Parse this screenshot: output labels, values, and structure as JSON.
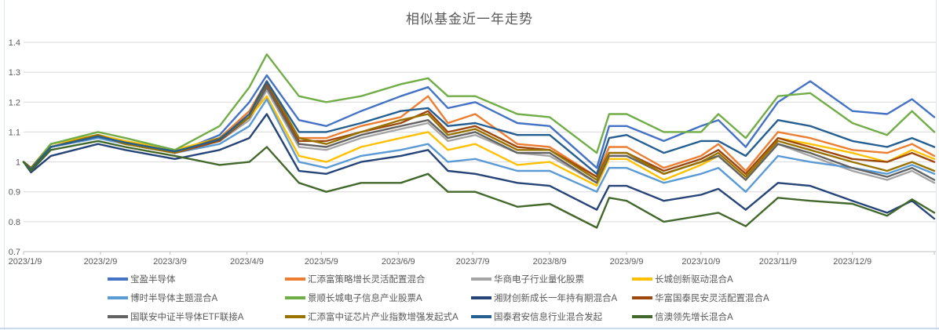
{
  "chart_data": {
    "type": "line",
    "title": "相似基金近一年走势",
    "xlabel": "",
    "ylabel": "",
    "ylim": [
      0.7,
      1.4
    ],
    "y_ticks": [
      0.7,
      0.8,
      0.9,
      1,
      1.1,
      1.2,
      1.3,
      1.4
    ],
    "y_tick_labels": [
      "0.7",
      "0.8",
      "0.9",
      "1",
      "1.1",
      "1.2",
      "1.3",
      "1.4"
    ],
    "x_tick_labels": [
      "2023/1/9",
      "2023/2/9",
      "2023/3/9",
      "2023/4/9",
      "2023/5/9",
      "2023/6/9",
      "2023/7/9",
      "2023/8/9",
      "2023/9/9",
      "2023/10/9",
      "2023/11/9",
      "2023/12/9"
    ],
    "x_tick_days": [
      0,
      31,
      59,
      90,
      120,
      151,
      181,
      212,
      243,
      273,
      304,
      334
    ],
    "xlim": [
      0,
      367
    ],
    "grid": true,
    "legend_position": "bottom",
    "x_days": [
      0,
      3,
      11,
      30,
      41,
      61,
      79,
      91,
      98,
      111,
      122,
      136,
      152,
      163,
      171,
      182,
      199,
      212,
      231,
      236,
      243,
      258,
      273,
      280,
      291,
      304,
      317,
      334,
      348,
      358,
      367
    ],
    "series": [
      {
        "name": "宝盈半导体",
        "color": "#4472C4",
        "values": [
          1.0,
          0.975,
          1.06,
          1.09,
          1.07,
          1.03,
          1.09,
          1.2,
          1.29,
          1.14,
          1.12,
          1.17,
          1.22,
          1.25,
          1.18,
          1.2,
          1.13,
          1.12,
          0.98,
          1.12,
          1.12,
          1.07,
          1.12,
          1.14,
          1.05,
          1.2,
          1.27,
          1.17,
          1.16,
          1.21,
          1.15
        ]
      },
      {
        "name": "汇添富策略增长灵活配置混合",
        "color": "#ED7D31",
        "values": [
          1.0,
          0.98,
          1.05,
          1.09,
          1.07,
          1.04,
          1.08,
          1.17,
          1.27,
          1.08,
          1.08,
          1.12,
          1.15,
          1.22,
          1.13,
          1.16,
          1.06,
          1.05,
          0.95,
          1.05,
          1.05,
          0.98,
          1.02,
          1.06,
          0.97,
          1.1,
          1.08,
          1.04,
          1.03,
          1.06,
          1.02
        ]
      },
      {
        "name": "华商电子行业量化股票",
        "color": "#A5A5A5",
        "values": [
          1.0,
          0.98,
          1.05,
          1.08,
          1.06,
          1.03,
          1.07,
          1.14,
          1.24,
          1.05,
          1.04,
          1.08,
          1.11,
          1.13,
          1.07,
          1.09,
          1.03,
          1.02,
          0.93,
          1.02,
          1.02,
          0.96,
          1.0,
          1.02,
          0.94,
          1.06,
          1.02,
          0.97,
          0.94,
          0.97,
          0.93
        ]
      },
      {
        "name": "长城创新驱动混合A",
        "color": "#FFC000",
        "values": [
          1.0,
          0.98,
          1.06,
          1.09,
          1.07,
          1.04,
          1.08,
          1.15,
          1.22,
          1.02,
          1.0,
          1.05,
          1.08,
          1.1,
          1.04,
          1.06,
          0.99,
          1.0,
          0.92,
          1.01,
          1.01,
          0.94,
          0.99,
          1.02,
          0.94,
          1.08,
          1.06,
          1.03,
          1.0,
          1.04,
          1.01
        ]
      },
      {
        "name": "博时半导体主题混合A",
        "color": "#5B9BD5",
        "values": [
          1.0,
          0.975,
          1.05,
          1.08,
          1.06,
          1.03,
          1.06,
          1.12,
          1.21,
          1.0,
          0.98,
          1.02,
          1.04,
          1.06,
          1.0,
          1.01,
          0.97,
          0.97,
          0.9,
          0.98,
          0.98,
          0.93,
          0.96,
          0.98,
          0.9,
          1.02,
          1.0,
          0.98,
          0.96,
          0.99,
          0.96
        ]
      },
      {
        "name": "景顺长城电子信息产业股票A",
        "color": "#70AD47",
        "values": [
          1.0,
          0.98,
          1.06,
          1.1,
          1.08,
          1.04,
          1.12,
          1.25,
          1.36,
          1.22,
          1.2,
          1.22,
          1.26,
          1.28,
          1.22,
          1.22,
          1.16,
          1.15,
          1.03,
          1.16,
          1.16,
          1.1,
          1.1,
          1.16,
          1.08,
          1.22,
          1.23,
          1.13,
          1.09,
          1.17,
          1.1
        ]
      },
      {
        "name": "湘财创新成长一年持有期混合A",
        "color": "#264478",
        "values": [
          1.0,
          0.965,
          1.02,
          1.06,
          1.04,
          1.01,
          1.04,
          1.08,
          1.16,
          0.97,
          0.96,
          1.0,
          1.02,
          1.04,
          0.97,
          0.96,
          0.93,
          0.92,
          0.84,
          0.92,
          0.92,
          0.87,
          0.89,
          0.91,
          0.84,
          0.93,
          0.92,
          0.87,
          0.83,
          0.87,
          0.81
        ]
      },
      {
        "name": "华富国泰民安灵活配置混合A",
        "color": "#9E480E",
        "values": [
          1.0,
          0.98,
          1.05,
          1.09,
          1.06,
          1.03,
          1.07,
          1.15,
          1.26,
          1.07,
          1.07,
          1.1,
          1.13,
          1.17,
          1.1,
          1.12,
          1.05,
          1.04,
          0.95,
          1.03,
          1.03,
          0.97,
          1.01,
          1.04,
          0.96,
          1.08,
          1.05,
          1.01,
          1.0,
          1.03,
          1.0
        ]
      },
      {
        "name": "国联安中证半导体ETF联接A",
        "color": "#636363",
        "values": [
          1.0,
          0.98,
          1.05,
          1.085,
          1.065,
          1.035,
          1.075,
          1.15,
          1.25,
          1.06,
          1.05,
          1.09,
          1.12,
          1.14,
          1.08,
          1.1,
          1.03,
          1.03,
          0.93,
          1.02,
          1.02,
          0.96,
          1.0,
          1.02,
          0.94,
          1.06,
          1.03,
          0.98,
          0.95,
          0.98,
          0.94
        ]
      },
      {
        "name": "汇添富中证芯片产业指数增强发起式A",
        "color": "#997300",
        "values": [
          1.0,
          0.98,
          1.05,
          1.09,
          1.06,
          1.03,
          1.08,
          1.15,
          1.27,
          1.08,
          1.06,
          1.1,
          1.14,
          1.16,
          1.09,
          1.11,
          1.04,
          1.04,
          0.94,
          1.03,
          1.03,
          0.96,
          1.0,
          1.03,
          0.95,
          1.07,
          1.04,
          1.0,
          0.97,
          1.0,
          0.97
        ]
      },
      {
        "name": "国泰君安信息行业混合发起",
        "color": "#255E91",
        "values": [
          1.0,
          0.975,
          1.05,
          1.085,
          1.065,
          1.035,
          1.075,
          1.16,
          1.27,
          1.1,
          1.1,
          1.13,
          1.17,
          1.18,
          1.12,
          1.13,
          1.09,
          1.09,
          0.96,
          1.08,
          1.09,
          1.03,
          1.07,
          1.07,
          1.02,
          1.14,
          1.12,
          1.07,
          1.05,
          1.08,
          1.05
        ]
      },
      {
        "name": "信澳领先增长混合A",
        "color": "#43682B",
        "values": [
          1.0,
          0.97,
          1.04,
          1.07,
          1.05,
          1.02,
          0.99,
          1.0,
          1.05,
          0.93,
          0.9,
          0.93,
          0.93,
          0.96,
          0.9,
          0.9,
          0.85,
          0.86,
          0.78,
          0.88,
          0.87,
          0.8,
          0.82,
          0.83,
          0.785,
          0.88,
          0.87,
          0.86,
          0.82,
          0.875,
          0.83
        ]
      }
    ],
    "colors": {
      "gridline": "#D9D9D9",
      "axis_line": "#BFBFBF",
      "tick_label": "#595959",
      "title": "#595959"
    }
  }
}
